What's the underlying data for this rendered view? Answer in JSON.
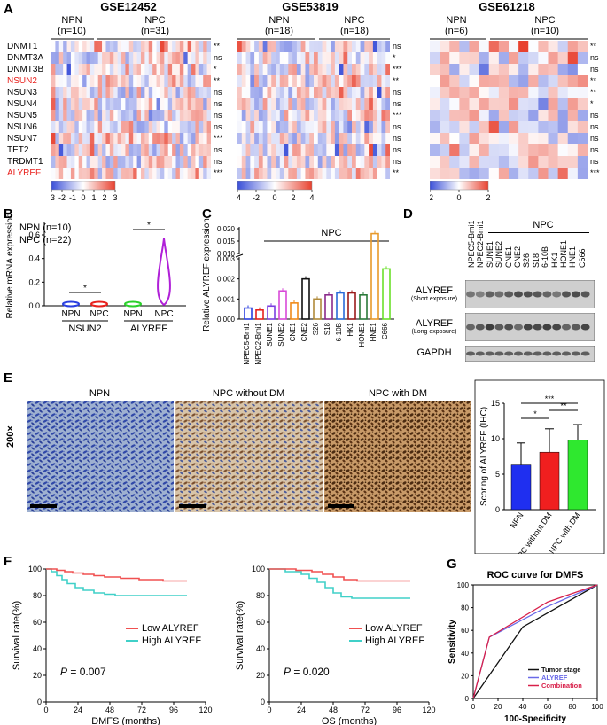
{
  "panels": {
    "a": "A",
    "b": "B",
    "c": "C",
    "d": "D",
    "e": "E",
    "f": "F",
    "g": "G"
  },
  "panelA": {
    "datasets": [
      {
        "title": "GSE12452",
        "g1": "NPN",
        "n1": "(n=10)",
        "g2": "NPC",
        "n2": "(n=31)",
        "cols1": 10,
        "cols2": 31,
        "sig": [
          "**",
          "ns",
          "*",
          "**",
          "ns",
          "ns",
          "ns",
          "ns",
          "***",
          "ns",
          "ns",
          "***"
        ]
      },
      {
        "title": "GSE53819",
        "g1": "NPN",
        "n1": "(n=18)",
        "g2": "NPC",
        "n2": "(n=18)",
        "cols1": 18,
        "cols2": 18,
        "sig": [
          "ns",
          "*",
          "***",
          "**",
          "ns",
          "ns",
          "***",
          "ns",
          "ns",
          "ns",
          "ns",
          "**"
        ]
      },
      {
        "title": "GSE61218",
        "g1": "NPN",
        "n1": "(n=6)",
        "g2": "NPC",
        "n2": "(n=10)",
        "cols1": 6,
        "cols2": 10,
        "sig": [
          "**",
          "ns",
          "ns",
          "**",
          "**",
          "*",
          "ns",
          "ns",
          "ns",
          "ns",
          "ns",
          "***"
        ]
      }
    ],
    "genes": [
      "DNMT1",
      "DNMT3A",
      "DNMT3B",
      "NSUN2",
      "NSUN3",
      "NSUN4",
      "NSUN5",
      "NSUN6",
      "NSUN7",
      "TET2",
      "TRDMT1",
      "ALYREF"
    ],
    "highlight": [
      "NSUN2",
      "ALYREF"
    ],
    "scale1": [
      "-3",
      "-2",
      "-1",
      "0",
      "1",
      "2",
      "3"
    ],
    "scale2": [
      "-4",
      "-2",
      "0",
      "2",
      "4"
    ],
    "scale3": [
      "-2",
      "0",
      "2"
    ],
    "colors": {
      "low": "#3a4fd8",
      "mid": "#ffffff",
      "high": "#e8412f",
      "red": "#e8211d"
    }
  },
  "panelB": {
    "ylabel": "Relative mRNA expression",
    "legend1": "NPN (n=10)",
    "legend2": "NPC (n=22)",
    "yticks": [
      "0.0",
      "0.2",
      "0.4",
      "0.6"
    ],
    "groups": [
      "NSUN2",
      "ALYREF"
    ],
    "cats": [
      "NPN",
      "NPC",
      "NPN",
      "NPC"
    ],
    "sig": [
      "*",
      "*"
    ]
  },
  "panelC": {
    "ylabel": "Relative ALYREF expression",
    "group": "NPC",
    "yticks_low": [
      "0.000",
      "0.001",
      "0.002",
      "0.003"
    ],
    "yticks_high": [
      "0.010",
      "0.015",
      "0.020"
    ],
    "cells": [
      "NPEC5-Bmi1",
      "NPEC2-Bmi1",
      "SUNE1",
      "SUNE2",
      "CNE1",
      "CNE2",
      "S26",
      "S18",
      "6-10B",
      "HK1",
      "HONE1",
      "HNE1",
      "C666"
    ],
    "values": [
      0.00055,
      0.00045,
      0.00065,
      0.0014,
      0.0008,
      0.002,
      0.001,
      0.0012,
      0.0013,
      0.0013,
      0.0012,
      0.018,
      0.0025
    ],
    "colors": [
      "#2a3fe0",
      "#e8211d",
      "#7b3fe0",
      "#d84ad8",
      "#f08a1a",
      "#111111",
      "#b08a3a",
      "#8a2a8a",
      "#2a6ad8",
      "#9a1a1a",
      "#2a7a3a",
      "#e89a2a",
      "#6ae02a"
    ]
  },
  "panelD": {
    "cells": [
      "NPEC5-Bmi1",
      "NPEC2-Bmi1",
      "SUNE1",
      "SUNE2",
      "CNE1",
      "CNE2",
      "S26",
      "S18",
      "6-10B",
      "HK1",
      "HONE1",
      "HNE1",
      "C666"
    ],
    "group": "NPC",
    "rows": [
      {
        "label": "ALYREF",
        "sub": "(Short exposure)"
      },
      {
        "label": "ALYREF",
        "sub": "(Long exposure)"
      },
      {
        "label": "GAPDH",
        "sub": ""
      }
    ]
  },
  "panelE": {
    "labels": [
      "NPN",
      "NPC without DM",
      "NPC with DM"
    ],
    "mag": "200×",
    "chart": {
      "ylabel": "Scoring of ALYREF (IHC)",
      "yticks": [
        "0",
        "5",
        "10",
        "15"
      ],
      "cats": [
        "NPN",
        "NPC without DM",
        "NPC with DM"
      ],
      "values": [
        6.3,
        8.1,
        9.8
      ],
      "errors": [
        3.1,
        3.3,
        2.2
      ],
      "colors": [
        "#1f2ff0",
        "#f01f1f",
        "#2fe82f"
      ],
      "sig": [
        "***",
        "*",
        "**"
      ]
    }
  },
  "panelF": {
    "plots": [
      {
        "xlabel": "DMFS (months)",
        "p": "= 0.007",
        "xticks": [
          "0",
          "24",
          "48",
          "72",
          "96",
          "120"
        ]
      },
      {
        "xlabel": "OS (months)",
        "p": "= 0.020",
        "xticks": [
          "0",
          "24",
          "48",
          "72",
          "96",
          "120"
        ]
      }
    ],
    "ylabel": "Survival rate(%)",
    "yticks": [
      "0",
      "20",
      "40",
      "60",
      "80",
      "100"
    ],
    "legend": [
      "Low ALYREF",
      "High ALYREF"
    ],
    "colors": [
      "#f05050",
      "#40d0c8"
    ],
    "pLetter": "P"
  },
  "panelG": {
    "title": "ROC curve for DMFS",
    "ylabel": "Sensitivity",
    "xlabel": "100-Specificity",
    "ticks": [
      "0",
      "20",
      "40",
      "60",
      "80",
      "100"
    ],
    "legend": [
      "Tumor stage",
      "ALYREF",
      "Combination"
    ],
    "colors": [
      "#111111",
      "#6a6ae8",
      "#d8204a"
    ]
  },
  "chart_data": [
    {
      "type": "bar",
      "title": "",
      "ylabel": "Scoring of ALYREF (IHC)",
      "categories": [
        "NPN",
        "NPC without DM",
        "NPC with DM"
      ],
      "values": [
        6.3,
        8.1,
        9.8
      ],
      "ylim": [
        0,
        15
      ]
    },
    {
      "type": "line",
      "title": "",
      "xlabel": "DMFS (months)",
      "ylabel": "Survival rate(%)",
      "series": [
        {
          "name": "Low ALYREF",
          "x": [
            0,
            10,
            20,
            30,
            45,
            60,
            80,
            100
          ],
          "y": [
            100,
            99,
            97,
            95,
            94,
            93,
            92,
            91
          ]
        },
        {
          "name": "High ALYREF",
          "x": [
            0,
            10,
            20,
            30,
            45,
            60,
            80,
            100
          ],
          "y": [
            100,
            93,
            88,
            84,
            81,
            80,
            80,
            80
          ]
        }
      ],
      "ylim": [
        0,
        100
      ]
    },
    {
      "type": "line",
      "title": "",
      "xlabel": "OS (months)",
      "ylabel": "Survival rate(%)",
      "series": [
        {
          "name": "Low ALYREF",
          "x": [
            0,
            20,
            40,
            50,
            60,
            80,
            100
          ],
          "y": [
            100,
            99,
            97,
            94,
            92,
            91,
            91
          ]
        },
        {
          "name": "High ALYREF",
          "x": [
            0,
            20,
            35,
            45,
            55,
            80,
            100
          ],
          "y": [
            100,
            96,
            90,
            84,
            79,
            78,
            78
          ]
        }
      ],
      "ylim": [
        0,
        100
      ]
    },
    {
      "type": "line",
      "title": "ROC curve for DMFS",
      "xlabel": "100-Specificity",
      "ylabel": "Sensitivity",
      "series": [
        {
          "name": "Tumor stage",
          "x": [
            0,
            40,
            100
          ],
          "y": [
            0,
            63,
            100
          ]
        },
        {
          "name": "ALYREF",
          "x": [
            0,
            13,
            60,
            100
          ],
          "y": [
            0,
            54,
            81,
            100
          ]
        },
        {
          "name": "Combination",
          "x": [
            0,
            13,
            60,
            100
          ],
          "y": [
            0,
            54,
            85,
            100
          ]
        }
      ],
      "xlim": [
        0,
        100
      ],
      "ylim": [
        0,
        100
      ]
    }
  ]
}
